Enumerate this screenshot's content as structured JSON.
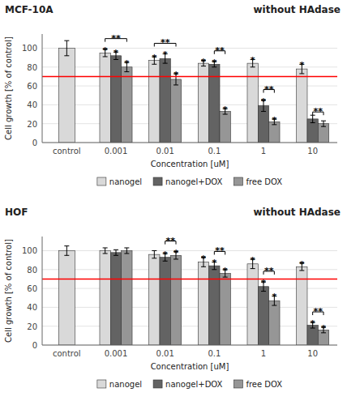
{
  "chart_data": [
    {
      "type": "bar",
      "title": "MCF-10A",
      "subtitle": "without HAdase",
      "xlabel": "Concentration [uM]",
      "ylabel": "Cell growth [% of control]",
      "categories": [
        "control",
        "0.001",
        "0.01",
        "0.1",
        "1",
        "10"
      ],
      "series": [
        {
          "name": "nanogel",
          "color": "#d9d9d9",
          "values": [
            100,
            95,
            87,
            84,
            84,
            78
          ],
          "errors": [
            8,
            4,
            4,
            3,
            4,
            5
          ]
        },
        {
          "name": "nanogel+DOX",
          "color": "#636363",
          "values": [
            null,
            92,
            89,
            83,
            39,
            25
          ],
          "errors": [
            null,
            4,
            5,
            3,
            6,
            4
          ]
        },
        {
          "name": "free DOX",
          "color": "#969696",
          "values": [
            null,
            80,
            67,
            33,
            22,
            20
          ],
          "errors": [
            null,
            5,
            6,
            3,
            3,
            3
          ]
        }
      ],
      "threshold": {
        "value": 70,
        "color": "#ff0000"
      },
      "ylim": [
        0,
        115
      ],
      "yticks": [
        0,
        20,
        40,
        60,
        80,
        100
      ],
      "grid": true,
      "legend": "bottom",
      "annotations": [
        {
          "type": "star",
          "text": "*",
          "category": "0.001",
          "series": "nanogel"
        },
        {
          "type": "star",
          "text": "*",
          "category": "0.001",
          "series": "nanogel+DOX"
        },
        {
          "type": "star",
          "text": "*",
          "category": "0.001",
          "series": "free DOX"
        },
        {
          "type": "star",
          "text": "*",
          "category": "0.01",
          "series": "nanogel"
        },
        {
          "type": "star",
          "text": "*",
          "category": "0.01",
          "series": "nanogel+DOX"
        },
        {
          "type": "star",
          "text": "*",
          "category": "0.01",
          "series": "free DOX"
        },
        {
          "type": "star",
          "text": "*",
          "category": "0.1",
          "series": "nanogel"
        },
        {
          "type": "star",
          "text": "*",
          "category": "0.1",
          "series": "nanogel+DOX"
        },
        {
          "type": "star",
          "text": "*",
          "category": "0.1",
          "series": "free DOX"
        },
        {
          "type": "star",
          "text": "*",
          "category": "1",
          "series": "nanogel"
        },
        {
          "type": "star",
          "text": "*",
          "category": "1",
          "series": "nanogel+DOX"
        },
        {
          "type": "star",
          "text": "*",
          "category": "1",
          "series": "free DOX"
        },
        {
          "type": "star",
          "text": "*",
          "category": "10",
          "series": "nanogel"
        },
        {
          "type": "bracket",
          "text": "**",
          "category": "0.001",
          "series": [
            "nanogel",
            "free DOX"
          ]
        },
        {
          "type": "bracket",
          "text": "**",
          "category": "0.01",
          "series": [
            "nanogel",
            "free DOX"
          ]
        },
        {
          "type": "bracket",
          "text": "**",
          "category": "0.1",
          "series": [
            "nanogel+DOX",
            "free DOX"
          ]
        },
        {
          "type": "bracket",
          "text": "**",
          "category": "1",
          "series": [
            "nanogel+DOX",
            "free DOX"
          ]
        },
        {
          "type": "bracket",
          "text": "**",
          "category": "10",
          "series": [
            "nanogel+DOX",
            "free DOX"
          ]
        }
      ]
    },
    {
      "type": "bar",
      "title": "HOF",
      "subtitle": "without HAdase",
      "xlabel": "Concentration [uM]",
      "ylabel": "Cell growth [% of control]",
      "categories": [
        "control",
        "0.001",
        "0.01",
        "0.1",
        "1",
        "10"
      ],
      "series": [
        {
          "name": "nanogel",
          "color": "#d9d9d9",
          "values": [
            100,
            100,
            96,
            88,
            86,
            83
          ],
          "errors": [
            5,
            3,
            4,
            5,
            5,
            4
          ]
        },
        {
          "name": "nanogel+DOX",
          "color": "#636363",
          "values": [
            null,
            98,
            93,
            84,
            62,
            21
          ],
          "errors": [
            null,
            3,
            4,
            4,
            5,
            3
          ]
        },
        {
          "name": "free DOX",
          "color": "#969696",
          "values": [
            null,
            100,
            95,
            76,
            47,
            16
          ],
          "errors": [
            null,
            3,
            4,
            4,
            5,
            3
          ]
        }
      ],
      "threshold": {
        "value": 70,
        "color": "#ff0000"
      },
      "ylim": [
        0,
        115
      ],
      "yticks": [
        0,
        20,
        40,
        60,
        80,
        100
      ],
      "grid": true,
      "legend": "bottom",
      "annotations": [
        {
          "type": "star",
          "text": "*",
          "category": "0.01",
          "series": "nanogel+DOX"
        },
        {
          "type": "star",
          "text": "*",
          "category": "0.01",
          "series": "free DOX"
        },
        {
          "type": "star",
          "text": "*",
          "category": "0.1",
          "series": "nanogel"
        },
        {
          "type": "star",
          "text": "*",
          "category": "0.1",
          "series": "nanogel+DOX"
        },
        {
          "type": "star",
          "text": "*",
          "category": "0.1",
          "series": "free DOX"
        },
        {
          "type": "star",
          "text": "*",
          "category": "1",
          "series": "nanogel"
        },
        {
          "type": "star",
          "text": "*",
          "category": "1",
          "series": "nanogel+DOX"
        },
        {
          "type": "star",
          "text": "*",
          "category": "1",
          "series": "free DOX"
        },
        {
          "type": "star",
          "text": "*",
          "category": "10",
          "series": "nanogel"
        },
        {
          "type": "star",
          "text": "*",
          "category": "10",
          "series": "nanogel+DOX"
        },
        {
          "type": "star",
          "text": "*",
          "category": "10",
          "series": "free DOX"
        },
        {
          "type": "bracket",
          "text": "**",
          "category": "0.01",
          "series": [
            "nanogel+DOX",
            "free DOX"
          ]
        },
        {
          "type": "bracket",
          "text": "**",
          "category": "0.1",
          "series": [
            "nanogel+DOX",
            "free DOX"
          ]
        },
        {
          "type": "bracket",
          "text": "**",
          "category": "1",
          "series": [
            "nanogel+DOX",
            "free DOX"
          ]
        },
        {
          "type": "bracket",
          "text": "**",
          "category": "10",
          "series": [
            "nanogel+DOX",
            "free DOX"
          ]
        }
      ]
    }
  ]
}
